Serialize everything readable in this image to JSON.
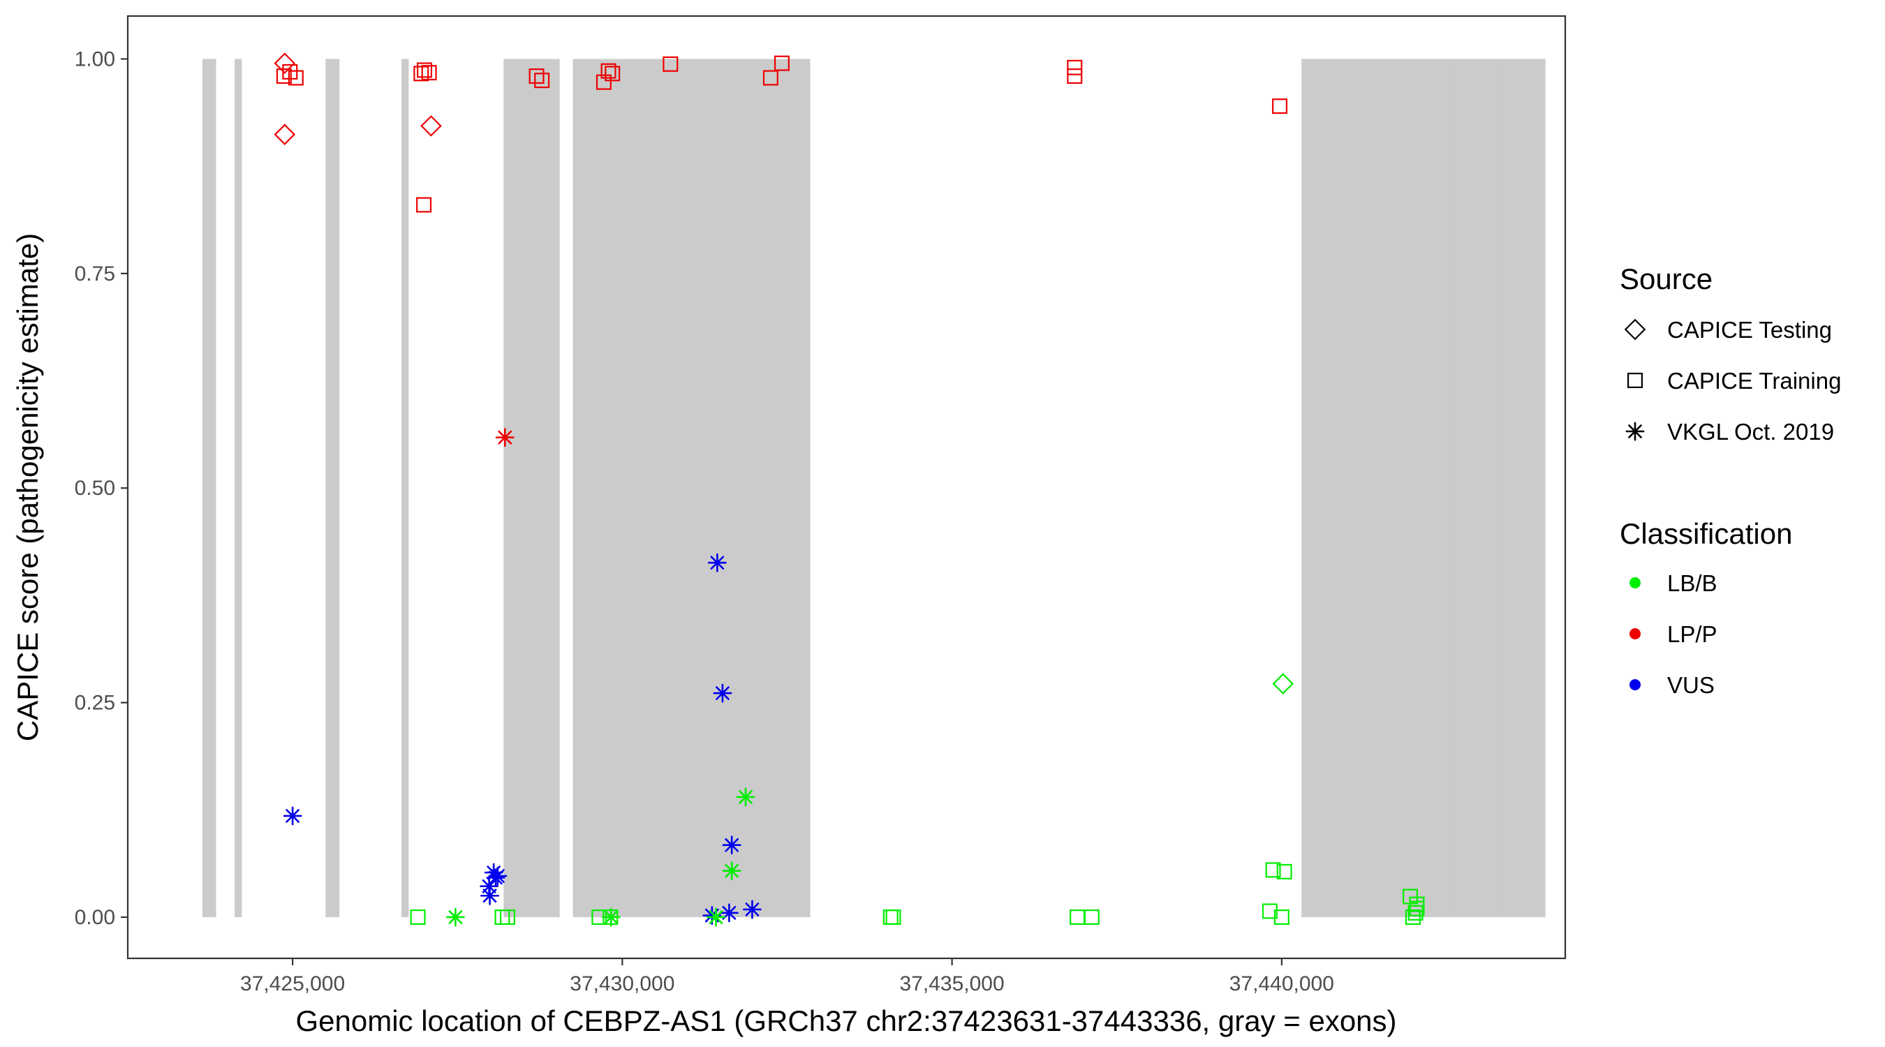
{
  "chart_data": {
    "type": "scatter",
    "title": "",
    "xlabel": "Genomic location of CEBPZ-AS1 (GRCh37 chr2:37423631-37443336, gray = exons)",
    "ylabel": "CAPICE score (pathogenicity estimate)",
    "xlim": [
      37422500,
      37444300
    ],
    "ylim": [
      -0.048,
      1.05
    ],
    "x_ticks": [
      37425000,
      37430000,
      37435000,
      37440000
    ],
    "x_tick_labels": [
      "37,425,000",
      "37,430,000",
      "37,435,000",
      "37,440,000"
    ],
    "y_ticks": [
      0,
      0.25,
      0.5,
      0.75,
      1
    ],
    "y_tick_labels": [
      "0.00",
      "0.25",
      "0.50",
      "0.75",
      "1.00"
    ],
    "grid": false,
    "exons": [
      [
        37423631,
        37423840
      ],
      [
        37424120,
        37424230
      ],
      [
        37425500,
        37425710
      ],
      [
        37426650,
        37426760
      ],
      [
        37428200,
        37429050
      ],
      [
        37429250,
        37432850
      ],
      [
        37444000,
        37440300
      ],
      [
        37442600,
        37442850
      ],
      [
        37443200,
        37443336
      ]
    ],
    "colors": {
      "LB/B": "#00ee00",
      "LP/P": "#ee0000",
      "VUS": "#0000ee",
      "exon": "#cbcbcb"
    },
    "legend": {
      "placement": "right",
      "source_title": "Source",
      "source_items": [
        {
          "label": "CAPICE Testing",
          "shape": "diamond"
        },
        {
          "label": "CAPICE Training",
          "shape": "square"
        },
        {
          "label": "VKGL Oct. 2019",
          "shape": "asterisk"
        }
      ],
      "class_title": "Classification",
      "class_items": [
        {
          "label": "LB/B",
          "color": "#00ee00"
        },
        {
          "label": "LP/P",
          "color": "#ee0000"
        },
        {
          "label": "VUS",
          "color": "#0000ee"
        }
      ]
    },
    "series": [
      {
        "name": "CAPICE Testing",
        "classification": "LP/P",
        "shape": "diamond",
        "x": [
          37424880,
          37424880,
          37427100
        ],
        "y": [
          0.995,
          0.912,
          0.922
        ]
      },
      {
        "name": "CAPICE Testing",
        "classification": "LB/B",
        "shape": "diamond",
        "x": [
          37440020
        ],
        "y": [
          0.272
        ]
      },
      {
        "name": "CAPICE Training",
        "classification": "LP/P",
        "shape": "square",
        "x": [
          37424870,
          37424960,
          37425050,
          37426950,
          37427000,
          37427070,
          37426990,
          37428700,
          37428780,
          37429720,
          37429790,
          37429850,
          37430730,
          37432250,
          37432420,
          37436860,
          37436860,
          37439970
        ],
        "y": [
          0.98,
          0.985,
          0.978,
          0.983,
          0.987,
          0.984,
          0.83,
          0.98,
          0.975,
          0.973,
          0.986,
          0.983,
          0.994,
          0.978,
          0.995,
          0.99,
          0.98,
          0.945
        ]
      },
      {
        "name": "CAPICE Training",
        "classification": "LB/B",
        "shape": "square",
        "x": [
          37426900,
          37428180,
          37428260,
          37429650,
          37429820,
          37434070,
          37434110,
          37436900,
          37437120,
          37439820,
          37439870,
          37440000,
          37440040,
          37441950,
          37442050,
          37442030,
          37441990,
          37442050
        ],
        "y": [
          0.0,
          0.0,
          0.0,
          0.0,
          0.0,
          0.0,
          0.0,
          0.0,
          0.0,
          0.007,
          0.055,
          0.0,
          0.053,
          0.024,
          0.015,
          0.005,
          0.0,
          0.01
        ]
      },
      {
        "name": "VKGL Oct. 2019",
        "classification": "LP/P",
        "shape": "asterisk",
        "x": [
          37428220
        ],
        "y": [
          0.559
        ]
      },
      {
        "name": "VKGL Oct. 2019",
        "classification": "VUS",
        "shape": "asterisk",
        "x": [
          37425000,
          37427980,
          37428050,
          37428110,
          37427990,
          37428080,
          37431440,
          37431520,
          37431660,
          37431360,
          37431620,
          37431970
        ],
        "y": [
          0.118,
          0.036,
          0.052,
          0.048,
          0.025,
          0.046,
          0.413,
          0.261,
          0.084,
          0.002,
          0.005,
          0.009
        ]
      },
      {
        "name": "VKGL Oct. 2019",
        "classification": "LB/B",
        "shape": "asterisk",
        "x": [
          37427470,
          37431660,
          37431870,
          37429830,
          37431420
        ],
        "y": [
          0.0,
          0.054,
          0.14,
          0.0,
          0.0
        ]
      }
    ]
  }
}
